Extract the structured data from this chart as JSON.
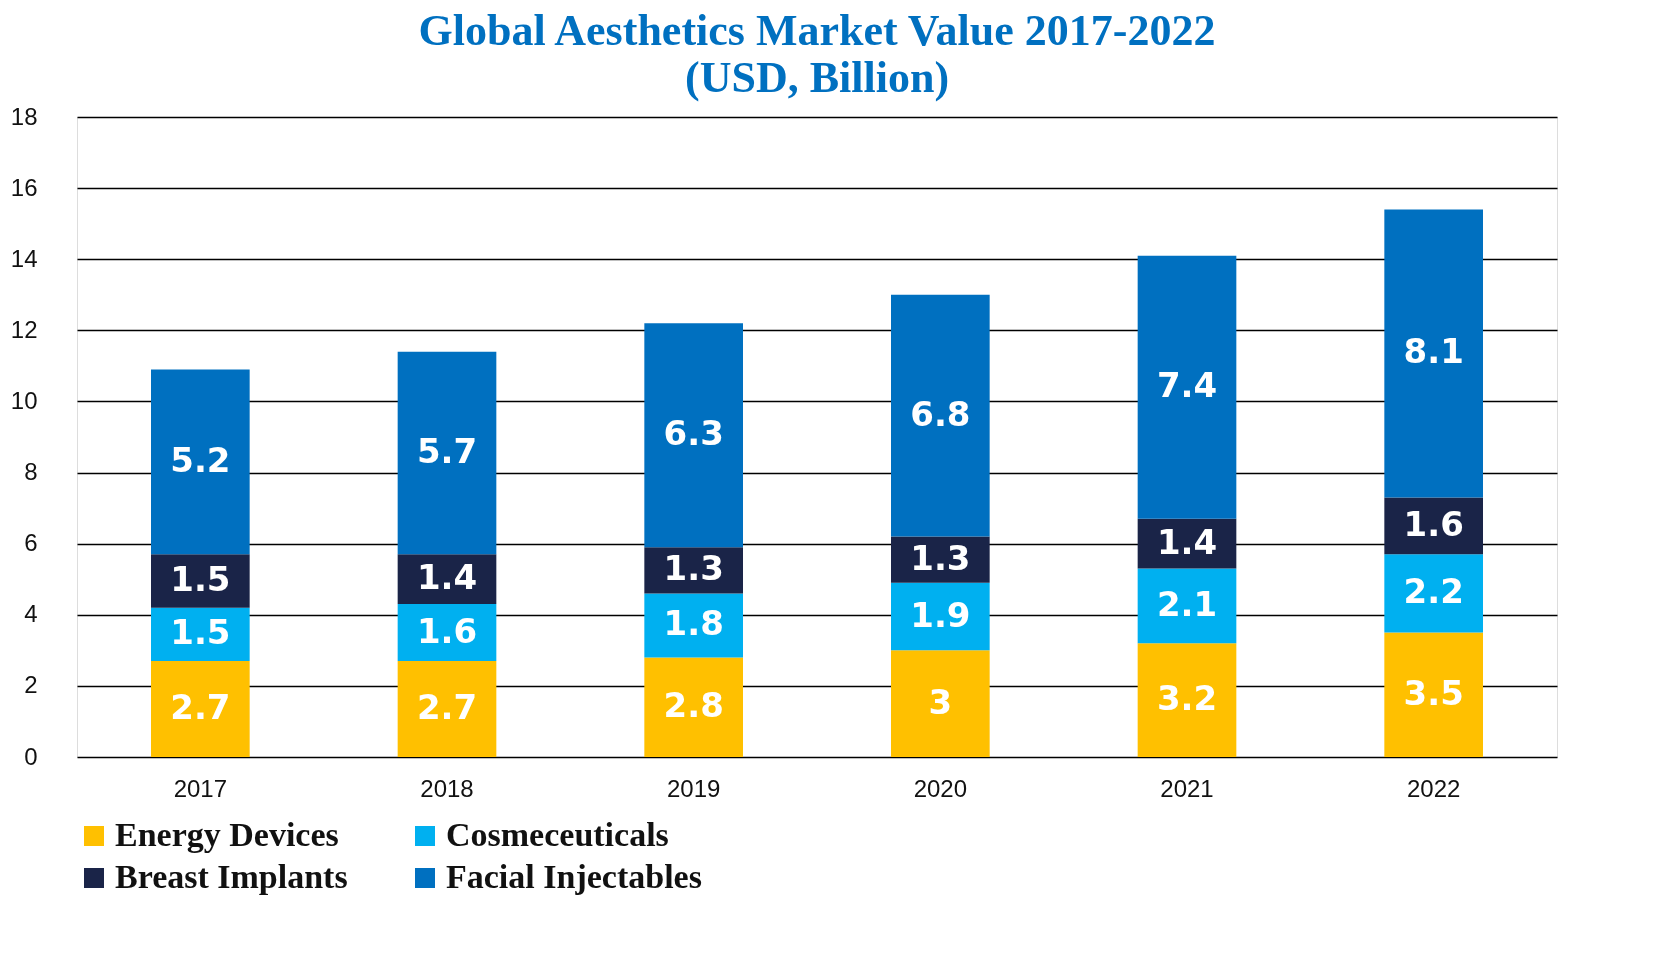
{
  "chart_data": {
    "type": "bar",
    "title": "Global Aesthetics Market Value 2017-2022",
    "subtitle": "(USD, Billion)",
    "categories": [
      "2017",
      "2018",
      "2019",
      "2020",
      "2021",
      "2022"
    ],
    "stacked": true,
    "data_labels": true,
    "grid": "y",
    "legend": "bottom",
    "ylim": [
      0,
      18
    ],
    "yticks": [
      0,
      2,
      4,
      6,
      8,
      10,
      12,
      14,
      16,
      18
    ],
    "series": [
      {
        "name": "Energy Devices",
        "color": "#ffc000",
        "values": [
          2.7,
          2.7,
          2.8,
          3,
          3.2,
          3.5
        ]
      },
      {
        "name": "Cosmeceuticals",
        "color": "#00b0f0",
        "values": [
          1.5,
          1.6,
          1.8,
          1.9,
          2.1,
          2.2
        ]
      },
      {
        "name": "Breast Implants",
        "color": "#1a2448",
        "values": [
          1.5,
          1.4,
          1.3,
          1.3,
          1.4,
          1.6
        ]
      },
      {
        "name": "Facial Injectables",
        "color": "#0070c0",
        "values": [
          5.2,
          5.7,
          6.3,
          6.8,
          7.4,
          8.1
        ]
      }
    ]
  }
}
